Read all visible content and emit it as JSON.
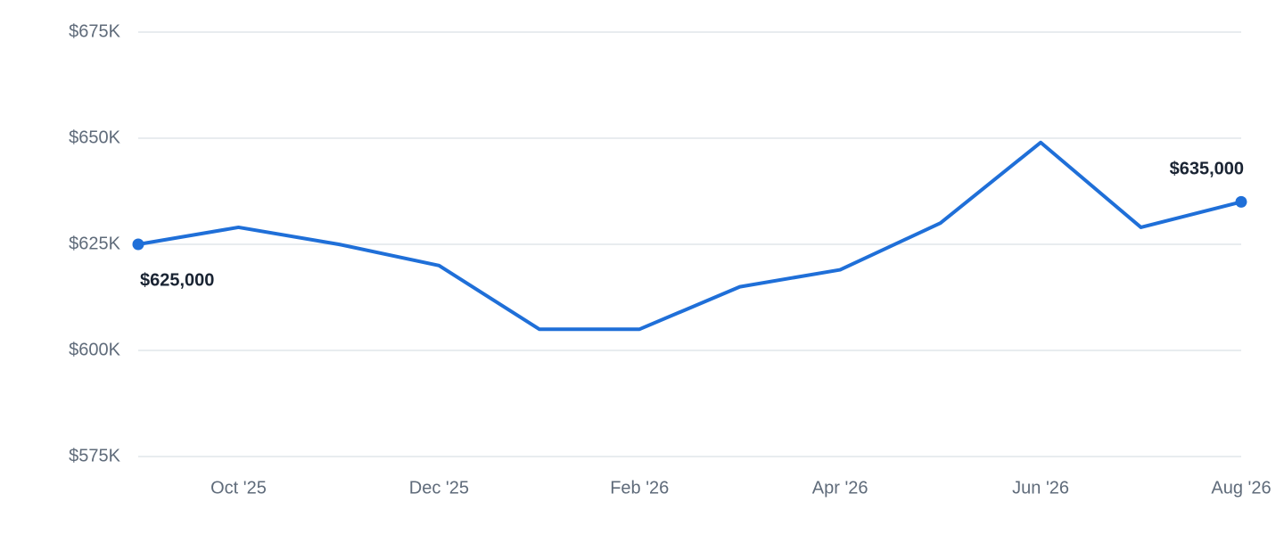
{
  "chart_data": {
    "type": "line",
    "categories": [
      null,
      "Oct '25",
      null,
      "Dec '25",
      null,
      "Feb '26",
      null,
      "Apr '26",
      null,
      "Jun '26",
      null,
      "Aug '26"
    ],
    "values": [
      625000,
      629000,
      625000,
      620000,
      605000,
      605000,
      615000,
      619000,
      630000,
      649000,
      629000,
      635000
    ],
    "value_labels": [
      "$625,000",
      null,
      null,
      null,
      null,
      null,
      null,
      null,
      null,
      null,
      null,
      "$635,000"
    ],
    "color": "#1f6fd8",
    "ylim": [
      575000,
      675000
    ],
    "yticks": [
      {
        "value": 575000,
        "label": "$575K"
      },
      {
        "value": 600000,
        "label": "$600K"
      },
      {
        "value": 625000,
        "label": "$625K"
      },
      {
        "value": 650000,
        "label": "$650K"
      },
      {
        "value": 675000,
        "label": "$675K"
      }
    ],
    "grid": true
  }
}
